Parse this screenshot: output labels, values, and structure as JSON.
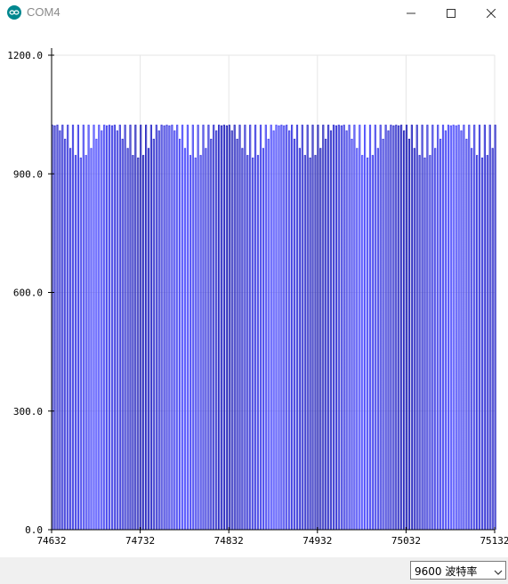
{
  "window": {
    "title": "COM4",
    "app_icon": "arduino-infinity-icon",
    "buttons": [
      "minimize-icon",
      "maximize-icon",
      "close-icon"
    ]
  },
  "footer": {
    "baud_value": "9600",
    "baud_unit": "波特率",
    "dropdown_icon": "chevron-down-icon"
  },
  "colors": {
    "series": "#3a3aff",
    "grid": "#e6e6e6",
    "axis": "#000000",
    "statusbar": "#f0f0f0"
  },
  "chart_data": {
    "type": "line",
    "ylim": [
      0,
      1200
    ],
    "xlim": [
      74632,
      75132
    ],
    "y_ticks": [
      "0.0",
      "300.0",
      "600.0",
      "900.0",
      "1200.0"
    ],
    "x_ticks": [
      "74632",
      "74732",
      "74832",
      "74932",
      "75032",
      "75132"
    ],
    "grid": true,
    "legend": "none",
    "series": [
      {
        "pattern": "rapid oscillation between 0 and a peak each sample pair",
        "peak_max": 1023,
        "peak_min_envelope": 940,
        "trough": 0
      }
    ]
  }
}
